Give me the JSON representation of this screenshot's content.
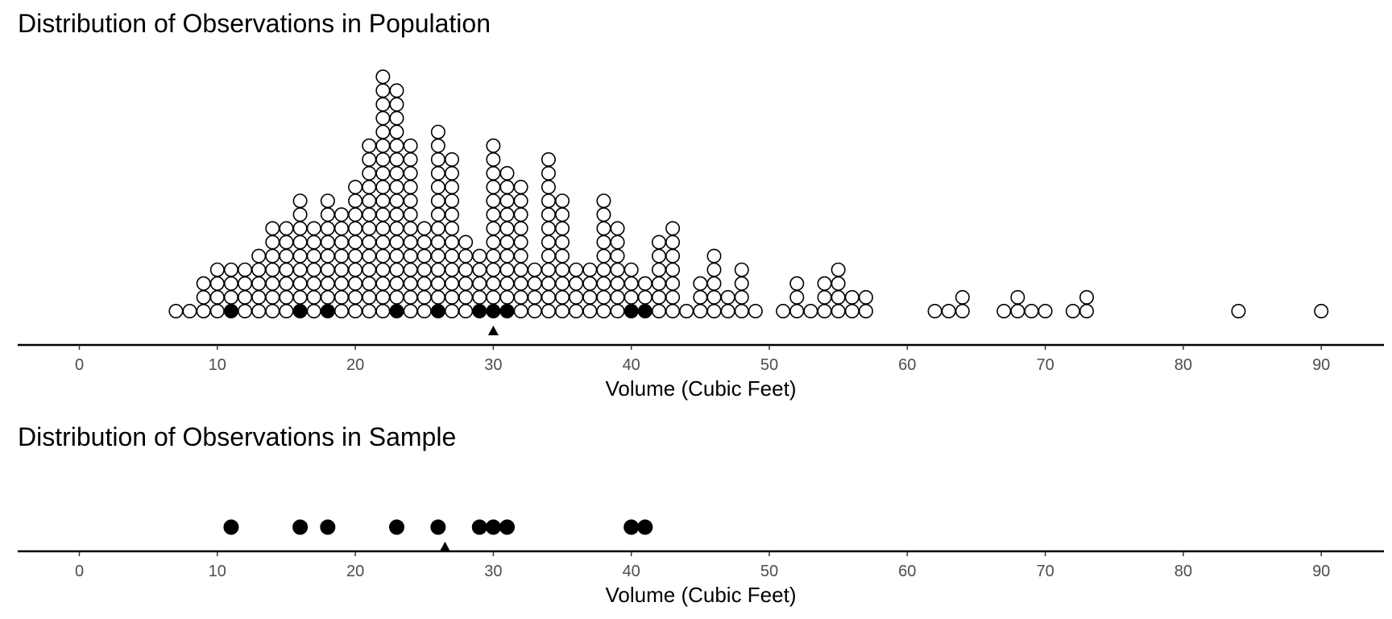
{
  "chart_data": [
    {
      "type": "scatter",
      "title": "Distribution of Observations in Population",
      "xlabel": "Volume (Cubic Feet)",
      "ylabel": "",
      "xlim": [
        -4.5,
        94.5
      ],
      "xticks": [
        0,
        10,
        20,
        30,
        40,
        50,
        60,
        70,
        80,
        90
      ],
      "grid": false,
      "mean_marker": 30,
      "stacks": [
        {
          "x": 7,
          "count": 1
        },
        {
          "x": 8,
          "count": 1
        },
        {
          "x": 9,
          "count": 3
        },
        {
          "x": 10,
          "count": 4
        },
        {
          "x": 11,
          "count": 4
        },
        {
          "x": 12,
          "count": 4
        },
        {
          "x": 13,
          "count": 5
        },
        {
          "x": 14,
          "count": 7
        },
        {
          "x": 15,
          "count": 7
        },
        {
          "x": 16,
          "count": 9
        },
        {
          "x": 17,
          "count": 7
        },
        {
          "x": 18,
          "count": 9
        },
        {
          "x": 19,
          "count": 8
        },
        {
          "x": 20,
          "count": 10
        },
        {
          "x": 21,
          "count": 13
        },
        {
          "x": 22,
          "count": 18
        },
        {
          "x": 23,
          "count": 17
        },
        {
          "x": 24,
          "count": 13
        },
        {
          "x": 25,
          "count": 7
        },
        {
          "x": 26,
          "count": 14
        },
        {
          "x": 27,
          "count": 12
        },
        {
          "x": 28,
          "count": 6
        },
        {
          "x": 29,
          "count": 5
        },
        {
          "x": 30,
          "count": 13
        },
        {
          "x": 31,
          "count": 11
        },
        {
          "x": 32,
          "count": 10
        },
        {
          "x": 33,
          "count": 4
        },
        {
          "x": 34,
          "count": 12
        },
        {
          "x": 35,
          "count": 9
        },
        {
          "x": 36,
          "count": 4
        },
        {
          "x": 37,
          "count": 4
        },
        {
          "x": 38,
          "count": 9
        },
        {
          "x": 39,
          "count": 7
        },
        {
          "x": 40,
          "count": 4
        },
        {
          "x": 41,
          "count": 3
        },
        {
          "x": 42,
          "count": 6
        },
        {
          "x": 43,
          "count": 7
        },
        {
          "x": 44,
          "count": 1
        },
        {
          "x": 45,
          "count": 3
        },
        {
          "x": 46,
          "count": 5
        },
        {
          "x": 47,
          "count": 2
        },
        {
          "x": 48,
          "count": 4
        },
        {
          "x": 49,
          "count": 1
        },
        {
          "x": 51,
          "count": 1
        },
        {
          "x": 52,
          "count": 3
        },
        {
          "x": 53,
          "count": 1
        },
        {
          "x": 54,
          "count": 3
        },
        {
          "x": 55,
          "count": 4
        },
        {
          "x": 56,
          "count": 2
        },
        {
          "x": 57,
          "count": 2
        },
        {
          "x": 62,
          "count": 1
        },
        {
          "x": 63,
          "count": 1
        },
        {
          "x": 64,
          "count": 2
        },
        {
          "x": 67,
          "count": 1
        },
        {
          "x": 68,
          "count": 2
        },
        {
          "x": 69,
          "count": 1
        },
        {
          "x": 70,
          "count": 1
        },
        {
          "x": 72,
          "count": 1
        },
        {
          "x": 73,
          "count": 2
        },
        {
          "x": 84,
          "count": 1
        },
        {
          "x": 90,
          "count": 1
        }
      ],
      "highlighted_x": [
        11,
        16,
        18,
        23,
        26,
        29,
        30,
        31,
        40,
        41
      ],
      "colors": {
        "population_fill": "#ffffff",
        "sample_fill": "#000000",
        "outline": "#000000"
      }
    },
    {
      "type": "scatter",
      "title": "Distribution of Observations in Sample",
      "xlabel": "Volume (Cubic Feet)",
      "ylabel": "",
      "xlim": [
        -4.5,
        94.5
      ],
      "xticks": [
        0,
        10,
        20,
        30,
        40,
        50,
        60,
        70,
        80,
        90
      ],
      "grid": false,
      "mean_marker": 26.5,
      "x": [
        11,
        16,
        18,
        23,
        26,
        29,
        30,
        31,
        40,
        41
      ],
      "colors": {
        "point_fill": "#000000"
      }
    }
  ]
}
